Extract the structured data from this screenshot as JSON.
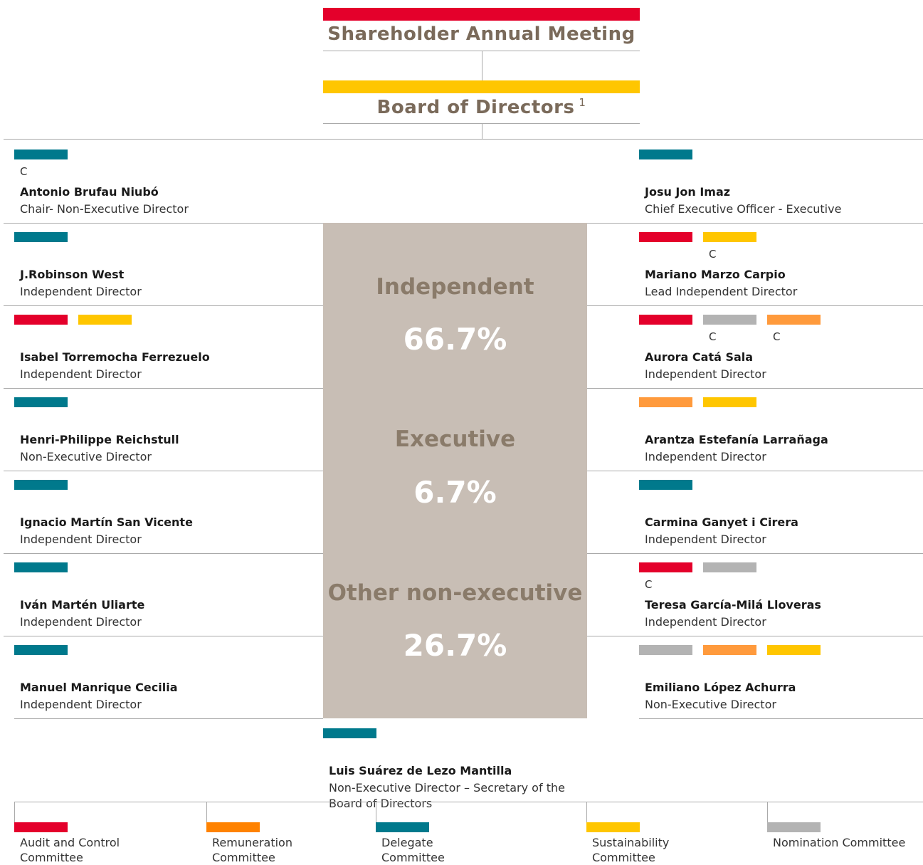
{
  "header": {
    "title": "Shareholder Annual Meeting",
    "color": "#e4002b"
  },
  "board": {
    "title": "Board of Directors",
    "note": "1",
    "color": "#ffc600"
  },
  "left": [
    {
      "name": "Antonio Brufau Niubó",
      "role": "Chair- Non-Executive Director",
      "bars": [
        {
          "color": "#00798c",
          "label": "C"
        }
      ]
    },
    {
      "name": "J.Robinson West",
      "role": "Independent Director",
      "bars": [
        {
          "color": "#00798c"
        }
      ]
    },
    {
      "name": "Isabel Torremocha Ferrezuelo",
      "role": "Independent Director",
      "bars": [
        {
          "color": "#e4002b"
        },
        {
          "color": "#ffc600"
        }
      ]
    },
    {
      "name": "Henri-Philippe Reichstull",
      "role": "Non-Executive Director",
      "bars": [
        {
          "color": "#00798c"
        }
      ]
    },
    {
      "name": "Ignacio Martín San Vicente",
      "role": "Independent Director",
      "bars": [
        {
          "color": "#00798c"
        }
      ]
    },
    {
      "name": "Iván Martén Uliarte",
      "role": "Independent Director",
      "bars": [
        {
          "color": "#00798c"
        }
      ]
    },
    {
      "name": "Manuel Manrique Cecilia",
      "role": "Independent Director",
      "bars": [
        {
          "color": "#00798c"
        }
      ]
    }
  ],
  "right": [
    {
      "name": "Josu Jon Imaz",
      "role": "Chief Executive Officer - Executive",
      "bars": [
        {
          "color": "#00798c"
        }
      ]
    },
    {
      "name": "Mariano Marzo Carpio",
      "role": "Lead Independent Director",
      "bars": [
        {
          "color": "#e4002b"
        },
        {
          "color": "#ffc600",
          "label": "C"
        }
      ]
    },
    {
      "name": "Aurora Catá Sala",
      "role": "Independent Director",
      "bars": [
        {
          "color": "#e4002b"
        },
        {
          "color": "#b3b3b3",
          "label": "C"
        },
        {
          "color": "#ff9a3c",
          "label": "C"
        }
      ]
    },
    {
      "name": "Arantza Estefanía Larrañaga",
      "role": "Independent Director",
      "bars": [
        {
          "color": "#ff9a3c"
        },
        {
          "color": "#ffc600"
        }
      ]
    },
    {
      "name": "Carmina Ganyet i Cirera",
      "role": "Independent Director",
      "bars": [
        {
          "color": "#00798c"
        }
      ]
    },
    {
      "name": "Teresa García-Milá Lloveras",
      "role": "Independent Director",
      "bars": [
        {
          "color": "#e4002b",
          "label": "C"
        },
        {
          "color": "#b3b3b3"
        }
      ]
    },
    {
      "name": "Emiliano López Achurra",
      "role": "Non-Executive Director",
      "bars": [
        {
          "color": "#b3b3b3"
        },
        {
          "color": "#ff9a3c"
        },
        {
          "color": "#ffc600"
        }
      ]
    }
  ],
  "composition": [
    {
      "label": "Independent",
      "share": "66.7%"
    },
    {
      "label": "Executive",
      "share": "6.7%"
    },
    {
      "label": "Other non-executive",
      "share": "26.7%"
    }
  ],
  "secretary": {
    "name": "Luis Suárez de Lezo Mantilla",
    "role": "Non-Executive Director – Secretary of the Board of Directors",
    "bars": [
      {
        "color": "#00798c"
      }
    ]
  },
  "legend": [
    {
      "label": "Audit and Control Committee",
      "color": "#e4002b"
    },
    {
      "label": "Remuneration Committee",
      "color": "#ff8200"
    },
    {
      "label": "Delegate Committee",
      "color": "#00798c"
    },
    {
      "label": "Sustainability Committee",
      "color": "#ffc600"
    },
    {
      "label": "Nomination Committee",
      "color": "#b3b3b3"
    }
  ]
}
